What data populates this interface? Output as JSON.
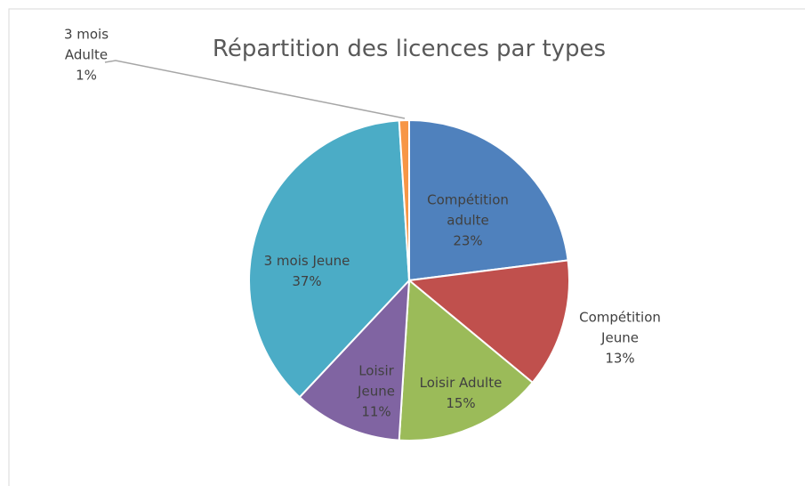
{
  "chart_data": {
    "type": "pie",
    "title": "Répartition des licences par types",
    "categories": [
      "Compétition adulte",
      "Compétition Jeune",
      "Loisir Adulte",
      "Loisir Jeune",
      "3 mois Jeune",
      "3 mois Adulte"
    ],
    "values": [
      23,
      13,
      15,
      11,
      37,
      1
    ],
    "value_labels": [
      "23%",
      "13%",
      "15%",
      "11%",
      "37%",
      "1%"
    ],
    "colors": [
      "#4f81bd",
      "#c0504d",
      "#9bbb59",
      "#8064a2",
      "#4bacc6",
      "#f79646"
    ]
  }
}
